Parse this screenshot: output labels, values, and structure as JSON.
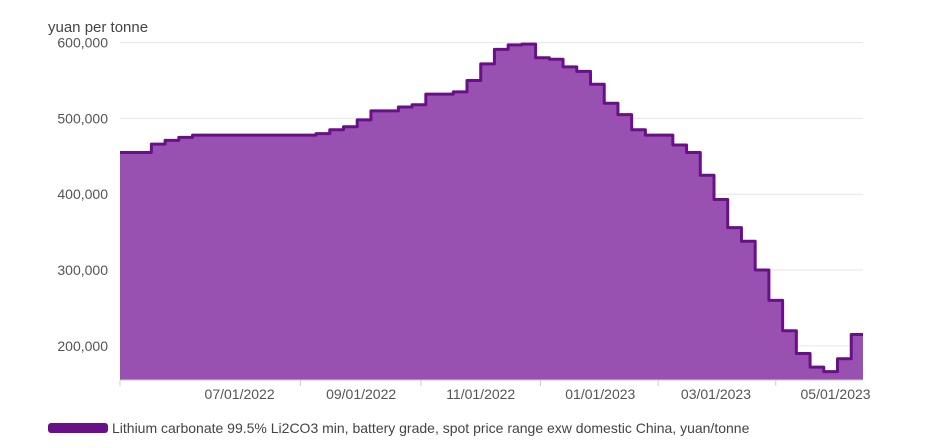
{
  "chart_data": {
    "type": "area",
    "ylabel": "yuan per tonne",
    "ylim": [
      155000,
      610000
    ],
    "y_ticks": [
      200000,
      300000,
      400000,
      500000,
      600000
    ],
    "y_tick_labels": [
      "200,000",
      "300,000",
      "400,000",
      "500,000",
      "600,000"
    ],
    "x_tick_labels": [
      "07/01/2022",
      "09/01/2022",
      "11/01/2022",
      "01/01/2023",
      "03/01/2023",
      "05/01/2023"
    ],
    "x_range": [
      "2022-05-01",
      "2023-05-15"
    ],
    "x_ticks": [
      "2022-07-01",
      "2022-09-01",
      "2022-11-01",
      "2023-01-01",
      "2023-03-01",
      "2023-05-01"
    ],
    "grid": true,
    "legend_position": "bottom-left",
    "colors": {
      "fill": "#9951b1",
      "line": "#6a0f8a",
      "grid": "#e6e6e6",
      "legend": "#6a0f8a"
    },
    "series": [
      {
        "name": "Lithium carbonate 99.5% Li2CO3 min, battery grade, spot price range exw domestic China, yuan/tonne",
        "x": [
          "2022-05-01",
          "2022-05-17",
          "2022-05-24",
          "2022-05-31",
          "2022-06-07",
          "2022-06-14",
          "2022-06-21",
          "2022-06-28",
          "2022-07-05",
          "2022-07-12",
          "2022-07-19",
          "2022-07-26",
          "2022-08-02",
          "2022-08-09",
          "2022-08-16",
          "2022-08-23",
          "2022-08-30",
          "2022-09-06",
          "2022-09-13",
          "2022-09-20",
          "2022-09-27",
          "2022-10-04",
          "2022-10-11",
          "2022-10-18",
          "2022-10-25",
          "2022-11-01",
          "2022-11-08",
          "2022-11-15",
          "2022-11-22",
          "2022-11-29",
          "2022-12-06",
          "2022-12-13",
          "2022-12-20",
          "2022-12-27",
          "2023-01-03",
          "2023-01-10",
          "2023-01-17",
          "2023-01-24",
          "2023-01-31",
          "2023-02-07",
          "2023-02-14",
          "2023-02-21",
          "2023-02-28",
          "2023-03-07",
          "2023-03-14",
          "2023-03-21",
          "2023-03-28",
          "2023-04-04",
          "2023-04-11",
          "2023-04-18",
          "2023-04-25",
          "2023-05-02",
          "2023-05-09",
          "2023-05-15"
        ],
        "values": [
          455000,
          466000,
          471000,
          475000,
          478000,
          478000,
          478000,
          478000,
          478000,
          478000,
          478000,
          478000,
          478000,
          480000,
          485000,
          489000,
          498000,
          510000,
          510000,
          515000,
          518000,
          532000,
          532000,
          535000,
          550000,
          572000,
          591000,
          597000,
          598000,
          580000,
          578000,
          568000,
          562000,
          545000,
          520000,
          505000,
          485000,
          478000,
          478000,
          465000,
          455000,
          425000,
          393000,
          356000,
          338000,
          300000,
          260000,
          220000,
          190000,
          172000,
          166000,
          183000,
          215000,
          215000
        ]
      }
    ]
  },
  "legend": {
    "label": "Lithium carbonate 99.5% Li2CO3 min, battery grade, spot price range exw domestic China, yuan/tonne"
  }
}
